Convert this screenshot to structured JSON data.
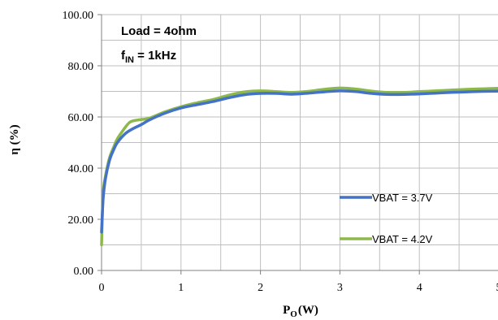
{
  "chart_data": {
    "type": "line",
    "title": "",
    "xlabel": {
      "main": "P",
      "sub": "O",
      "unit": "(W)"
    },
    "ylabel": "η (%)",
    "xlim": [
      0,
      5
    ],
    "ylim": [
      0,
      100
    ],
    "x_ticks": [
      "0",
      "1",
      "2",
      "3",
      "4",
      "5"
    ],
    "y_ticks": [
      "0.00",
      "20.00",
      "40.00",
      "60.00",
      "80.00",
      "100.00"
    ],
    "grid": true,
    "annotation": {
      "line1": "Load = 4ohm",
      "line2_main": "f",
      "line2_sub": "IN",
      "line2_rest": " = 1kHz"
    },
    "series": [
      {
        "name": "VBAT = 3.7V",
        "color": "#4472C4",
        "x": [
          0.0,
          0.02,
          0.05,
          0.1,
          0.15,
          0.2,
          0.3,
          0.4,
          0.5,
          0.6,
          0.8,
          1.0,
          1.2,
          1.4,
          1.6,
          1.8,
          2.0,
          2.2,
          2.4,
          2.6,
          2.8,
          3.0,
          3.2,
          3.4,
          3.6,
          3.8,
          4.0,
          4.2,
          4.4,
          4.6,
          4.8,
          5.0
        ],
        "y": [
          15,
          28,
          36,
          43,
          47,
          50,
          53.5,
          55.5,
          57,
          58.8,
          61.5,
          63.5,
          64.8,
          66,
          67.5,
          68.7,
          69.2,
          69.2,
          68.9,
          69.3,
          69.8,
          70.2,
          69.9,
          69.2,
          68.8,
          68.8,
          69,
          69.3,
          69.6,
          69.8,
          70,
          70.1
        ]
      },
      {
        "name": "VBAT = 4.2V",
        "color": "#8DB84A",
        "x": [
          0.0,
          0.02,
          0.05,
          0.1,
          0.15,
          0.2,
          0.3,
          0.35,
          0.4,
          0.5,
          0.6,
          0.8,
          1.0,
          1.2,
          1.4,
          1.6,
          1.8,
          2.0,
          2.2,
          2.4,
          2.6,
          2.8,
          3.0,
          3.2,
          3.4,
          3.6,
          3.8,
          4.0,
          4.2,
          4.4,
          4.6,
          4.8,
          5.0
        ],
        "y": [
          10,
          30,
          37,
          44,
          48,
          51.5,
          56,
          57.8,
          58.5,
          59,
          59.5,
          62,
          64,
          65.5,
          66.8,
          68.5,
          69.8,
          70.2,
          69.9,
          69.6,
          70,
          70.8,
          71.3,
          70.9,
          70.1,
          69.6,
          69.6,
          69.9,
          70.2,
          70.5,
          70.8,
          71,
          71.2
        ]
      }
    ]
  }
}
